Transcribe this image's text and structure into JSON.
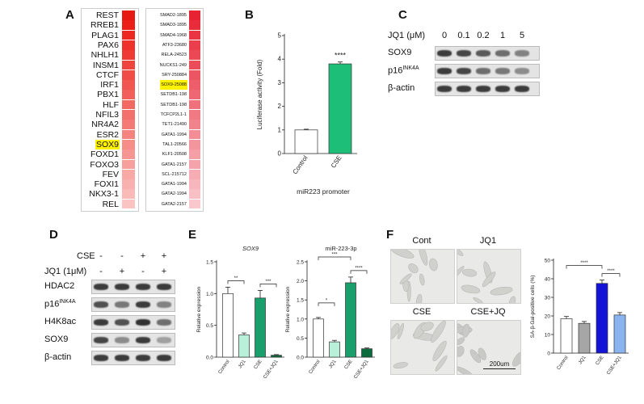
{
  "panels": {
    "A": "A",
    "B": "B",
    "C": "C",
    "D": "D",
    "E": "E",
    "F": "F"
  },
  "panelA": {
    "left": [
      "REST",
      "RREB1",
      "PLAG1",
      "PAX6",
      "NHLH1",
      "INSM1",
      "CTCF",
      "IRF1",
      "PBX1",
      "HLF",
      "NFIL3",
      "NR4A2",
      "ESR2",
      "SOX9",
      "FOXD1",
      "FOXO3",
      "FEV",
      "FOXI1",
      "NKX3-1",
      "REL"
    ],
    "left_highlight": 13,
    "right": [
      "SMAD2-1895",
      "SMAD3-1895",
      "SMAD4-1968",
      "ATF3-23680",
      "RELA-24523",
      "NUCKS1-249",
      "SRY-250884",
      "SOX9-25088",
      "SETDB1-198",
      "SETDB1-198",
      "TCFCP2L1-1",
      "TET1-21490",
      "GATA1-1994",
      "TAL1-20566",
      "KLF1-20508",
      "GATA1-2157",
      "SCL-215712",
      "GATA1-1994",
      "GATA2-1994",
      "GATA2-2157"
    ],
    "right_highlight": 7,
    "colors": {
      "strong": "#e8231e",
      "highlight": "#fff200"
    }
  },
  "panelB": {
    "chart_data": {
      "type": "bar",
      "categories": [
        "Control",
        "CSE"
      ],
      "values": [
        1.0,
        3.8
      ],
      "errors": [
        0.03,
        0.08
      ],
      "ylabel": "Luciferase activity (Fold)",
      "xlabel": "miR223 promoter",
      "ylim": [
        0,
        5
      ],
      "yticks": [
        "0",
        "1",
        "2",
        "3",
        "4",
        "5"
      ],
      "significance": "****",
      "colors": [
        "#ffffff",
        "#1dbf78"
      ]
    }
  },
  "panelC": {
    "header": "JQ1 (μM)",
    "doses": [
      "0",
      "0.1",
      "0.2",
      "1",
      "5"
    ],
    "rows": [
      {
        "label": "SOX9",
        "sup": "",
        "intensity": [
          0.85,
          0.8,
          0.7,
          0.6,
          0.5
        ]
      },
      {
        "label": "p16",
        "sup": "INK4A",
        "intensity": [
          0.85,
          0.8,
          0.6,
          0.55,
          0.45
        ]
      },
      {
        "label": "β-actin",
        "sup": "",
        "intensity": [
          0.85,
          0.85,
          0.85,
          0.85,
          0.85
        ]
      }
    ]
  },
  "panelD": {
    "cse_label": "CSE",
    "jq1_label": "JQ1 (1μM)",
    "cse": [
      "-",
      "-",
      "+",
      "+"
    ],
    "jq1": [
      "-",
      "+",
      "-",
      "+"
    ],
    "rows": [
      {
        "label": "HDAC2",
        "sup": "",
        "intensity": [
          0.85,
          0.85,
          0.85,
          0.85
        ]
      },
      {
        "label": "p16",
        "sup": "INK4A",
        "intensity": [
          0.75,
          0.55,
          0.85,
          0.5
        ]
      },
      {
        "label": "H4K8ac",
        "sup": "",
        "intensity": [
          0.85,
          0.75,
          0.9,
          0.6
        ]
      },
      {
        "label": "SOX9",
        "sup": "",
        "intensity": [
          0.8,
          0.45,
          0.85,
          0.35
        ]
      },
      {
        "label": "β-actin",
        "sup": "",
        "intensity": [
          0.85,
          0.85,
          0.85,
          0.85
        ]
      }
    ]
  },
  "panelE": {
    "chart_data": [
      {
        "type": "bar",
        "title": "SOX9",
        "ylabel": "Relative expression",
        "categories": [
          "Control",
          "JQ1",
          "CSE",
          "CSE+JQ1"
        ],
        "values": [
          1.0,
          0.35,
          0.93,
          0.03
        ],
        "errors": [
          0.1,
          0.03,
          0.12,
          0.01
        ],
        "ylim": [
          0,
          1.5
        ],
        "yticks": [
          "0.0",
          "0.5",
          "1.0",
          "1.5"
        ],
        "significance": [
          {
            "from": 0,
            "to": 1,
            "label": "**"
          },
          {
            "from": 2,
            "to": 3,
            "label": "***"
          }
        ],
        "colors": [
          "#ffffff",
          "#b9f0da",
          "#1a9e6c",
          "#0d6b3d"
        ]
      },
      {
        "type": "bar",
        "title": "miR-223-3p",
        "ylabel": "Relative expression",
        "categories": [
          "Control",
          "JQ1",
          "CSE",
          "CSE+JQ1"
        ],
        "values": [
          1.0,
          0.4,
          1.95,
          0.22
        ],
        "errors": [
          0.04,
          0.04,
          0.15,
          0.02
        ],
        "ylim": [
          0,
          2.5
        ],
        "yticks": [
          "0.0",
          "0.5",
          "1.0",
          "1.5",
          "2.0",
          "2.5"
        ],
        "significance": [
          {
            "from": 0,
            "to": 1,
            "label": "*"
          },
          {
            "from": 0,
            "to": 2,
            "label": "***"
          },
          {
            "from": 2,
            "to": 3,
            "label": "****"
          }
        ],
        "colors": [
          "#ffffff",
          "#b9f0da",
          "#1a9e6c",
          "#0d6b3d"
        ]
      }
    ]
  },
  "panelF": {
    "images": [
      "Cont",
      "JQ1",
      "CSE",
      "CSE+JQ"
    ],
    "scalebar": "200um",
    "chart_data": {
      "type": "bar",
      "ylabel": "SA-β-Gal-positive cells (%)",
      "categories": [
        "Control",
        "JQ1",
        "CSE",
        "CSE+JQ1"
      ],
      "values": [
        18.5,
        16.0,
        37.5,
        20.5
      ],
      "errors": [
        1.2,
        1.0,
        1.8,
        1.3
      ],
      "ylim": [
        0,
        50
      ],
      "yticks": [
        "0",
        "10",
        "20",
        "30",
        "40",
        "50"
      ],
      "significance": [
        {
          "from": 0,
          "to": 2,
          "label": "****"
        },
        {
          "from": 2,
          "to": 3,
          "label": "****"
        }
      ],
      "colors": [
        "#ffffff",
        "#a6a6a6",
        "#1414d6",
        "#8ab4f0"
      ]
    }
  }
}
